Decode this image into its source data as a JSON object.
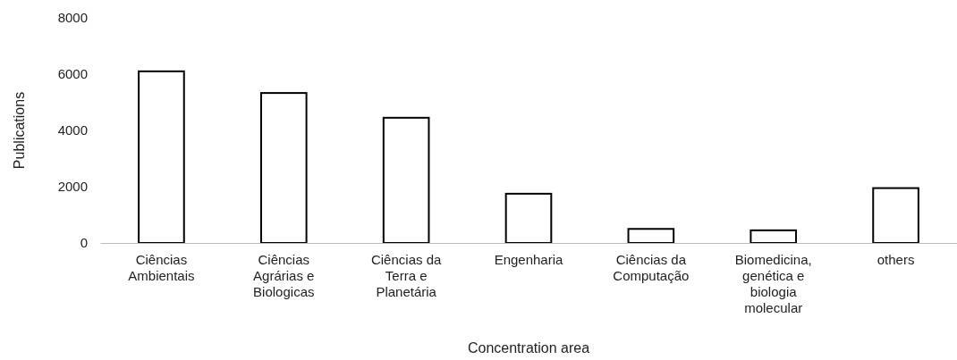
{
  "chart_data": {
    "type": "bar",
    "xlabel": "Concentration area",
    "ylabel": "Publications",
    "categories": [
      "Ciências Ambientais",
      "Ciências Agrárias e Biologicas",
      "Ciências da Terra e Planetária",
      "Engenharia",
      "Ciências da Computação",
      "Biomedicina, genética e biologia molecular",
      "others"
    ],
    "values": [
      6100,
      5330,
      4450,
      1750,
      500,
      450,
      1950
    ],
    "color": "#ffffff",
    "ylim": [
      0,
      8000
    ],
    "yticks": [
      0,
      2000,
      4000,
      6000,
      8000
    ],
    "grid": false
  }
}
